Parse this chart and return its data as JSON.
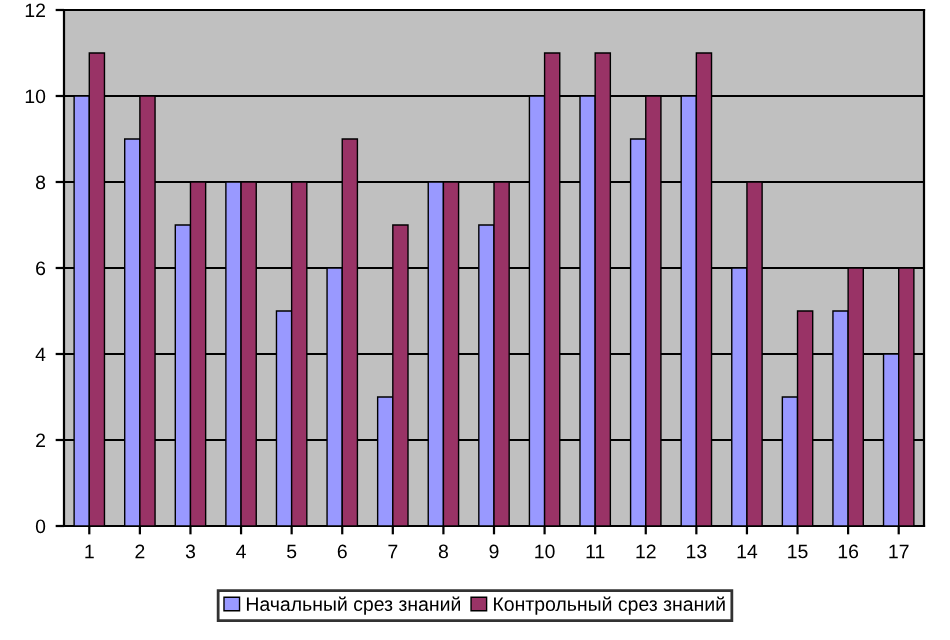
{
  "chart_data": {
    "type": "bar",
    "categories": [
      "1",
      "2",
      "3",
      "4",
      "5",
      "6",
      "7",
      "8",
      "9",
      "10",
      "11",
      "12",
      "13",
      "14",
      "15",
      "16",
      "17"
    ],
    "series": [
      {
        "name": "Начальный срез знаний",
        "color": "#9999ff",
        "values": [
          10,
          9,
          7,
          8,
          5,
          6,
          3,
          8,
          7,
          10,
          10,
          9,
          10,
          6,
          3,
          5,
          4
        ]
      },
      {
        "name": "Контрольный срез знаний",
        "color": "#993366",
        "values": [
          11,
          10,
          8,
          8,
          8,
          9,
          7,
          8,
          8,
          11,
          11,
          10,
          11,
          8,
          5,
          6,
          6
        ]
      }
    ],
    "ylim": [
      0,
      12
    ],
    "yticks": [
      0,
      2,
      4,
      6,
      8,
      10,
      12
    ],
    "grid": "y",
    "legend": "bottom"
  }
}
